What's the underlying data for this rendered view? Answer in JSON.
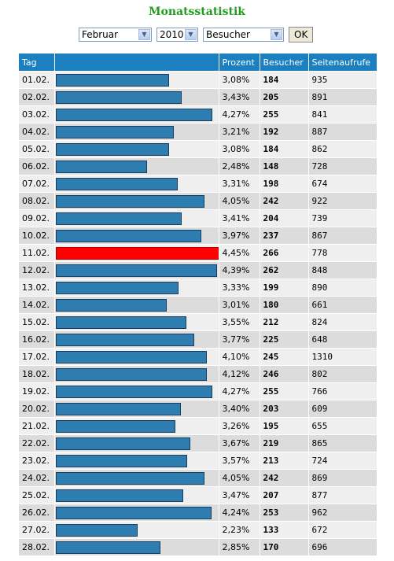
{
  "title": "Monatsstatistik",
  "controls": {
    "month": "Februar",
    "year": "2010",
    "metric": "Besucher",
    "ok_label": "OK"
  },
  "table": {
    "headers": {
      "tag": "Tag",
      "bar": "",
      "prozent": "Prozent",
      "besucher": "Besucher",
      "seiten": "Seitenaufrufe"
    },
    "max_besucher": 266,
    "rows": [
      {
        "tag": "01.02.",
        "prozent": "3,08%",
        "besucher": "184",
        "seiten": "935"
      },
      {
        "tag": "02.02.",
        "prozent": "3,43%",
        "besucher": "205",
        "seiten": "891"
      },
      {
        "tag": "03.02.",
        "prozent": "4,27%",
        "besucher": "255",
        "seiten": "841"
      },
      {
        "tag": "04.02.",
        "prozent": "3,21%",
        "besucher": "192",
        "seiten": "887"
      },
      {
        "tag": "05.02.",
        "prozent": "3,08%",
        "besucher": "184",
        "seiten": "862"
      },
      {
        "tag": "06.02.",
        "prozent": "2,48%",
        "besucher": "148",
        "seiten": "728"
      },
      {
        "tag": "07.02.",
        "prozent": "3,31%",
        "besucher": "198",
        "seiten": "674"
      },
      {
        "tag": "08.02.",
        "prozent": "4,05%",
        "besucher": "242",
        "seiten": "922"
      },
      {
        "tag": "09.02.",
        "prozent": "3,41%",
        "besucher": "204",
        "seiten": "739"
      },
      {
        "tag": "10.02.",
        "prozent": "3,97%",
        "besucher": "237",
        "seiten": "867"
      },
      {
        "tag": "11.02.",
        "prozent": "4,45%",
        "besucher": "266",
        "seiten": "778",
        "highlight": true
      },
      {
        "tag": "12.02.",
        "prozent": "4,39%",
        "besucher": "262",
        "seiten": "848"
      },
      {
        "tag": "13.02.",
        "prozent": "3,33%",
        "besucher": "199",
        "seiten": "890"
      },
      {
        "tag": "14.02.",
        "prozent": "3,01%",
        "besucher": "180",
        "seiten": "661"
      },
      {
        "tag": "15.02.",
        "prozent": "3,55%",
        "besucher": "212",
        "seiten": "824"
      },
      {
        "tag": "16.02.",
        "prozent": "3,77%",
        "besucher": "225",
        "seiten": "648"
      },
      {
        "tag": "17.02.",
        "prozent": "4,10%",
        "besucher": "245",
        "seiten": "1310"
      },
      {
        "tag": "18.02.",
        "prozent": "4,12%",
        "besucher": "246",
        "seiten": "802"
      },
      {
        "tag": "19.02.",
        "prozent": "4,27%",
        "besucher": "255",
        "seiten": "766"
      },
      {
        "tag": "20.02.",
        "prozent": "3,40%",
        "besucher": "203",
        "seiten": "609"
      },
      {
        "tag": "21.02.",
        "prozent": "3,26%",
        "besucher": "195",
        "seiten": "655"
      },
      {
        "tag": "22.02.",
        "prozent": "3,67%",
        "besucher": "219",
        "seiten": "865"
      },
      {
        "tag": "23.02.",
        "prozent": "3,57%",
        "besucher": "213",
        "seiten": "724"
      },
      {
        "tag": "24.02.",
        "prozent": "4,05%",
        "besucher": "242",
        "seiten": "869"
      },
      {
        "tag": "25.02.",
        "prozent": "3,47%",
        "besucher": "207",
        "seiten": "877"
      },
      {
        "tag": "26.02.",
        "prozent": "4,24%",
        "besucher": "253",
        "seiten": "962"
      },
      {
        "tag": "27.02.",
        "prozent": "2,23%",
        "besucher": "133",
        "seiten": "672"
      },
      {
        "tag": "28.02.",
        "prozent": "2,85%",
        "besucher": "170",
        "seiten": "696"
      }
    ]
  },
  "colors": {
    "title": "#1f9d1f",
    "header": "#1b7fc0",
    "bar": "#2e7db0",
    "bar_max": "#ff0000"
  }
}
